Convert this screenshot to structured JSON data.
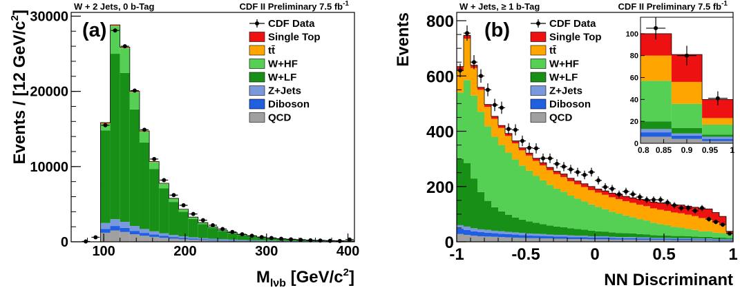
{
  "chart_data": [
    {
      "type": "bar",
      "stacked": true,
      "panel_label": "(a)",
      "header_left": "W + 2 Jets, 0 b-Tag",
      "header_right": "CDF II Preliminary 7.5 fb",
      "header_right_sup": "-1",
      "xlabel": "M",
      "xlabel_sub": "lνb",
      "xlabel_rest": " [GeV/c",
      "xlabel_sup": "2",
      "xlabel_end": "]",
      "ylabel": "Events / [12 GeV/c",
      "ylabel_sup": "2",
      "ylabel_end": "]",
      "xlim": [
        60,
        408
      ],
      "ylim": [
        0,
        30500
      ],
      "xticks": [
        100,
        200,
        300,
        400
      ],
      "xtick_labels": [
        "100",
        "200",
        "300",
        "400"
      ],
      "yticks": [
        0,
        10000,
        20000,
        30000
      ],
      "ytick_labels": [
        "0",
        "10000",
        "20000",
        "30000"
      ],
      "bin_edges": [
        96,
        108,
        120,
        132,
        144,
        156,
        168,
        180,
        192,
        204,
        216,
        228,
        240,
        252,
        264,
        276,
        288,
        300,
        312,
        324,
        336,
        348,
        360,
        372,
        384,
        396,
        408
      ],
      "legend": [
        "CDF Data",
        "Single Top",
        "tt̄",
        "W+HF",
        "W+LF",
        "Z+Jets",
        "Diboson",
        "QCD"
      ],
      "series": [
        {
          "name": "QCD",
          "color": "#a0a0a0",
          "values": [
            1200,
            1500,
            1300,
            1000,
            800,
            650,
            520,
            420,
            340,
            280,
            230,
            190,
            160,
            130,
            110,
            95,
            80,
            70,
            60,
            50,
            45,
            40,
            35,
            30,
            25,
            22
          ]
        },
        {
          "name": "Diboson",
          "color": "#1f5fe0",
          "values": [
            500,
            600,
            550,
            450,
            380,
            320,
            260,
            210,
            170,
            140,
            115,
            95,
            80,
            65,
            55,
            47,
            40,
            34,
            29,
            25,
            22,
            19,
            16,
            14,
            12,
            10
          ]
        },
        {
          "name": "Z+Jets",
          "color": "#7a99dd",
          "values": [
            800,
            900,
            800,
            650,
            520,
            420,
            340,
            270,
            220,
            180,
            150,
            125,
            105,
            88,
            74,
            62,
            52,
            44,
            37,
            31,
            26,
            22,
            19,
            16,
            14,
            12
          ]
        },
        {
          "name": "W+LF",
          "color": "#189018",
          "values": [
            12300,
            22000,
            19800,
            15500,
            11500,
            8300,
            6000,
            4400,
            3250,
            2420,
            1850,
            1420,
            1080,
            840,
            660,
            520,
            410,
            330,
            265,
            215,
            175,
            142,
            118,
            98,
            82,
            68
          ]
        },
        {
          "name": "W+HF",
          "color": "#55d055",
          "values": [
            900,
            3700,
            3300,
            2300,
            1450,
            900,
            600,
            420,
            300,
            220,
            170,
            130,
            100,
            78,
            62,
            50,
            40,
            33,
            27,
            22,
            18,
            15,
            13,
            11,
            9,
            8
          ]
        },
        {
          "name": "tt̄",
          "color": "#ffa500",
          "values": [
            60,
            60,
            55,
            50,
            45,
            40,
            35,
            30,
            25,
            22,
            18,
            15,
            12,
            10,
            8,
            7,
            6,
            5,
            4,
            4,
            3,
            3,
            2,
            2,
            2,
            1
          ]
        },
        {
          "name": "Single Top",
          "color": "#ee1111",
          "values": [
            80,
            80,
            70,
            60,
            50,
            40,
            32,
            26,
            21,
            17,
            14,
            11,
            9,
            7,
            6,
            5,
            4,
            3,
            3,
            2,
            2,
            2,
            1,
            1,
            1,
            1
          ]
        }
      ],
      "data": {
        "name": "CDF Data",
        "x": [
          78,
          90,
          102,
          114,
          126,
          138,
          150,
          162,
          174,
          186,
          198,
          210,
          222,
          234,
          246,
          258,
          270,
          282,
          294,
          306,
          318,
          330,
          342,
          354,
          366,
          378,
          390,
          402
        ],
        "y": [
          50,
          600,
          15500,
          28100,
          26000,
          20100,
          14900,
          11000,
          8200,
          6200,
          4850,
          3700,
          2870,
          2200,
          1700,
          1300,
          1000,
          800,
          620,
          500,
          400,
          320,
          250,
          200,
          160,
          130,
          100,
          300
        ]
      }
    },
    {
      "type": "bar",
      "stacked": true,
      "panel_label": "(b)",
      "header_left": "W + Jets, ≥ 1 b-Tag",
      "header_right": "CDF II Preliminary 7.5 fb",
      "header_right_sup": "-1",
      "xlabel": "NN Discriminant",
      "ylabel": "Events",
      "xlim": [
        -1,
        1
      ],
      "ylim": [
        0,
        830
      ],
      "xticks": [
        -1,
        -0.5,
        0,
        0.5,
        1
      ],
      "xtick_labels": [
        "-1",
        "-0.5",
        "0",
        "0.5",
        "1"
      ],
      "yticks": [
        0,
        200,
        400,
        600,
        800
      ],
      "ytick_labels": [
        "0",
        "200",
        "400",
        "600",
        "800"
      ],
      "bin_edges": [
        -1,
        -0.95,
        -0.9,
        -0.85,
        -0.8,
        -0.75,
        -0.7,
        -0.65,
        -0.6,
        -0.55,
        -0.5,
        -0.45,
        -0.4,
        -0.35,
        -0.3,
        -0.25,
        -0.2,
        -0.15,
        -0.1,
        -0.05,
        0,
        0.05,
        0.1,
        0.15,
        0.2,
        0.25,
        0.3,
        0.35,
        0.4,
        0.45,
        0.5,
        0.55,
        0.6,
        0.65,
        0.7,
        0.75,
        0.8,
        0.85,
        0.9,
        0.95,
        1
      ],
      "legend": [
        "CDF Data",
        "Single Top",
        "tt̄",
        "W+HF",
        "W+LF",
        "Z+Jets",
        "Diboson",
        "QCD"
      ],
      "series": [
        {
          "name": "QCD",
          "color": "#a0a0a0",
          "values": [
            28,
            25,
            22,
            20,
            19,
            18,
            17,
            16,
            15,
            14,
            13,
            13,
            12,
            12,
            11,
            11,
            10,
            10,
            10,
            9,
            9,
            9,
            8,
            8,
            8,
            8,
            7,
            7,
            7,
            7,
            7,
            6,
            6,
            6,
            6,
            6,
            6,
            5,
            5,
            5
          ]
        },
        {
          "name": "Diboson",
          "color": "#1f5fe0",
          "values": [
            20,
            18,
            16,
            15,
            14,
            13,
            12,
            12,
            11,
            10,
            10,
            9,
            9,
            8,
            8,
            8,
            7,
            7,
            7,
            6,
            6,
            6,
            6,
            5,
            5,
            5,
            5,
            5,
            4,
            4,
            4,
            4,
            4,
            4,
            3,
            3,
            3,
            3,
            3,
            3
          ]
        },
        {
          "name": "Z+Jets",
          "color": "#7a99dd",
          "values": [
            12,
            12,
            11,
            10,
            10,
            9,
            9,
            8,
            8,
            8,
            7,
            7,
            7,
            6,
            6,
            6,
            6,
            5,
            5,
            5,
            5,
            5,
            4,
            4,
            4,
            4,
            4,
            4,
            3,
            3,
            3,
            3,
            3,
            3,
            3,
            3,
            3,
            2,
            2,
            2
          ]
        },
        {
          "name": "W+LF",
          "color": "#189018",
          "values": [
            240,
            230,
            180,
            135,
            105,
            85,
            72,
            62,
            54,
            48,
            44,
            40,
            36,
            33,
            30,
            28,
            26,
            24,
            22,
            20,
            18,
            17,
            16,
            15,
            14,
            13,
            12,
            11,
            10,
            9,
            9,
            8,
            8,
            7,
            7,
            6,
            6,
            5,
            5,
            4
          ]
        },
        {
          "name": "W+HF",
          "color": "#55d055",
          "values": [
            240,
            300,
            300,
            290,
            270,
            255,
            240,
            225,
            210,
            195,
            183,
            170,
            158,
            147,
            137,
            128,
            118,
            110,
            102,
            95,
            88,
            81,
            75,
            70,
            64,
            59,
            54,
            50,
            45,
            41,
            37,
            33,
            30,
            27,
            24,
            20,
            20,
            18,
            16,
            13
          ]
        },
        {
          "name": "tt̄",
          "color": "#ffa500",
          "values": [
            80,
            150,
            100,
            80,
            70,
            65,
            62,
            60,
            58,
            56,
            55,
            54,
            54,
            53,
            53,
            53,
            52,
            52,
            52,
            52,
            52,
            52,
            52,
            52,
            52,
            52,
            52,
            52,
            52,
            52,
            52,
            52,
            52,
            51,
            50,
            48,
            47,
            40,
            33,
            5
          ]
        },
        {
          "name": "Single Top",
          "color": "#ee1111",
          "values": [
            14,
            12,
            10,
            9,
            9,
            9,
            9,
            9,
            9,
            9,
            9,
            9,
            10,
            10,
            10,
            11,
            11,
            12,
            12,
            13,
            13,
            14,
            15,
            16,
            17,
            18,
            20,
            21,
            23,
            25,
            26,
            28,
            30,
            31,
            32,
            33,
            34,
            33,
            28,
            6
          ]
        }
      ],
      "data": {
        "name": "CDF Data",
        "x": [
          -0.975,
          -0.925,
          -0.875,
          -0.825,
          -0.775,
          -0.725,
          -0.675,
          -0.625,
          -0.575,
          -0.525,
          -0.475,
          -0.425,
          -0.375,
          -0.325,
          -0.275,
          -0.225,
          -0.175,
          -0.125,
          -0.075,
          -0.025,
          0.025,
          0.075,
          0.125,
          0.175,
          0.225,
          0.275,
          0.325,
          0.375,
          0.425,
          0.475,
          0.525,
          0.575,
          0.625,
          0.675,
          0.725,
          0.775,
          0.825,
          0.875,
          0.925,
          0.975
        ],
        "y": [
          620,
          755,
          650,
          600,
          550,
          495,
          485,
          408,
          405,
          365,
          340,
          338,
          302,
          302,
          282,
          272,
          262,
          252,
          242,
          252,
          222,
          198,
          192,
          172,
          182,
          172,
          162,
          152,
          152,
          152,
          142,
          132,
          122,
          122,
          112,
          122,
          82,
          72,
          62,
          30
        ]
      },
      "inset": {
        "xlim": [
          0.8,
          1.0
        ],
        "ylim": [
          0,
          115
        ],
        "xticks": [
          0.8,
          0.85,
          0.9,
          0.95,
          1.0
        ],
        "xtick_labels": [
          "0.8",
          "0.85",
          "0.9",
          "0.95",
          "1"
        ],
        "yticks": [
          0,
          20,
          40,
          60,
          80,
          100
        ],
        "ytick_labels": [
          "0",
          "20",
          "40",
          "60",
          "80",
          "100"
        ],
        "bin_edges": [
          0.8,
          0.867,
          0.933,
          1.0
        ],
        "series": [
          {
            "name": "QCD",
            "color": "#a0a0a0",
            "values": [
              6,
              4,
              2
            ]
          },
          {
            "name": "Diboson",
            "color": "#1f5fe0",
            "values": [
              4,
              3,
              2
            ]
          },
          {
            "name": "Z+Jets",
            "color": "#7a99dd",
            "values": [
              3,
              2,
              2
            ]
          },
          {
            "name": "W+LF",
            "color": "#189018",
            "values": [
              7,
              5,
              2
            ]
          },
          {
            "name": "W+HF",
            "color": "#55d055",
            "values": [
              37,
              22,
              9
            ]
          },
          {
            "name": "tt̄",
            "color": "#ffa500",
            "values": [
              23,
              20,
              6
            ]
          },
          {
            "name": "Single Top",
            "color": "#ee1111",
            "values": [
              20,
              25,
              17
            ]
          }
        ],
        "data": {
          "name": "CDF Data",
          "x": [
            0.833,
            0.9,
            0.967
          ],
          "y": [
            105,
            80,
            41
          ]
        }
      }
    }
  ]
}
